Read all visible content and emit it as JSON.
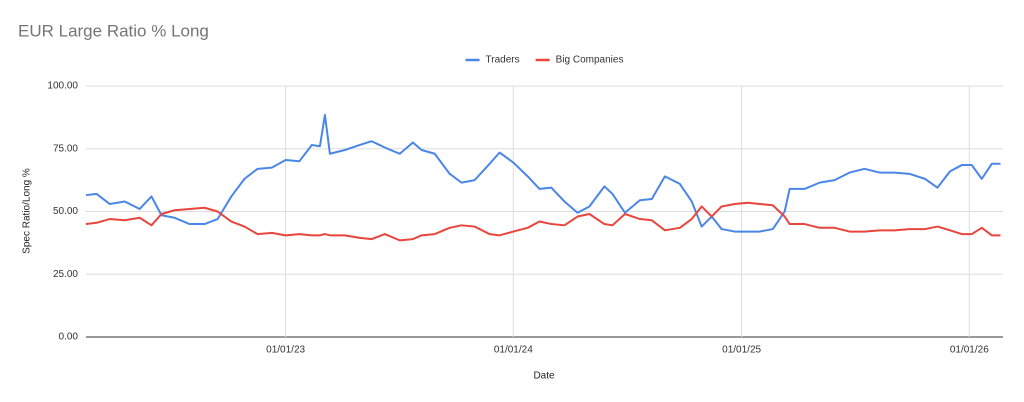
{
  "chart_data": {
    "type": "line",
    "title": "EUR Large Ratio % Long",
    "x_label": "Date",
    "y_label": "Spec Ratio/Long %",
    "x": [
      "02/15/22",
      "03/04/22",
      "03/25/22",
      "04/18/22",
      "05/12/22",
      "05/31/22",
      "06/16/22",
      "07/07/22",
      "07/31/22",
      "08/24/22",
      "09/14/22",
      "10/06/22",
      "10/27/22",
      "11/17/22",
      "12/10/22",
      "01/01/23",
      "01/23/23",
      "02/12/23",
      "02/25/23",
      "03/05/23",
      "03/13/23",
      "04/06/23",
      "04/30/23",
      "05/19/23",
      "06/09/23",
      "07/03/23",
      "07/24/23",
      "08/07/23",
      "08/28/23",
      "09/21/23",
      "10/10/23",
      "10/31/23",
      "11/24/23",
      "12/10/23",
      "01/01/24",
      "01/24/24",
      "02/12/24",
      "03/02/24",
      "03/23/24",
      "04/13/24",
      "05/02/24",
      "05/26/24",
      "06/08/24",
      "06/28/24",
      "07/22/24",
      "08/10/24",
      "08/31/24",
      "09/24/24",
      "10/13/24",
      "10/29/24",
      "11/14/24",
      "11/30/24",
      "12/21/24",
      "01/11/25",
      "01/30/25",
      "02/20/25",
      "03/11/25",
      "03/19/25",
      "04/12/25",
      "05/06/25",
      "05/30/25",
      "06/23/25",
      "07/17/25",
      "08/10/25",
      "09/03/25",
      "09/27/25",
      "10/22/25",
      "11/11/25",
      "12/01/25",
      "12/20/25",
      "01/05/26",
      "01/21/26",
      "02/06/26",
      "02/20/26"
    ],
    "series": [
      {
        "name": "Traders",
        "color": "#4a86e8",
        "values": [
          56.5,
          57,
          53,
          54,
          51,
          56,
          48.5,
          47.5,
          45,
          45,
          47,
          56,
          63,
          67,
          67.5,
          70.5,
          70,
          76.5,
          76,
          88.5,
          73,
          74.5,
          76.5,
          78,
          75.5,
          73,
          77.5,
          74.5,
          73,
          65,
          61.5,
          62.5,
          69,
          73.5,
          69.5,
          64,
          59,
          59.5,
          54,
          49.5,
          52,
          60,
          57,
          49.5,
          54.5,
          55,
          64,
          61,
          54,
          44,
          48,
          43,
          42,
          42,
          42,
          43,
          50,
          59,
          59,
          61.5,
          62.5,
          65.5,
          67,
          65.5,
          65.5,
          65,
          63,
          59.5,
          66,
          68.5,
          68.5,
          63,
          69,
          69
        ]
      },
      {
        "name": "Big Companies",
        "color": "#e8453c",
        "values": [
          45,
          45.5,
          47,
          46.5,
          47.5,
          44.5,
          49,
          50.5,
          51,
          51.5,
          50,
          46,
          44,
          41,
          41.5,
          40.5,
          41,
          40.5,
          40.5,
          41,
          40.5,
          40.5,
          39.5,
          39,
          41,
          38.5,
          39,
          40.5,
          41,
          43.5,
          44.5,
          44,
          41,
          40.5,
          42,
          43.5,
          46,
          45,
          44.5,
          48,
          49,
          45,
          44.5,
          49,
          47,
          46.5,
          42.5,
          43.5,
          47,
          52,
          48,
          52,
          53,
          53.5,
          53,
          52.5,
          48,
          45,
          45,
          43.5,
          43.5,
          42,
          42,
          42.5,
          42.5,
          43,
          43,
          44,
          42.5,
          41,
          41,
          43.5,
          40.5,
          40.5
        ]
      }
    ],
    "xlim": [
      "02/15/22",
      "02/24/26"
    ],
    "xticks": [
      "01/01/23",
      "01/01/24",
      "01/01/25",
      "01/01/26"
    ],
    "ylim": [
      0,
      100
    ],
    "yticks": [
      {
        "value": 0,
        "label": "0.00"
      },
      {
        "value": 25,
        "label": "25.00"
      },
      {
        "value": 50,
        "label": "50.00"
      },
      {
        "value": 75,
        "label": "75.00"
      },
      {
        "value": 100,
        "label": "100.00"
      }
    ],
    "grid": true,
    "legend": "top"
  }
}
